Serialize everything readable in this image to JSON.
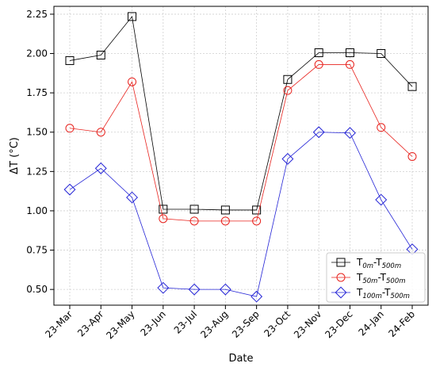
{
  "chart_data": {
    "type": "line",
    "title": "",
    "xlabel": "Date",
    "ylabel": "ΔT (°C)",
    "categories": [
      "23-Mar",
      "23-Apr",
      "23-May",
      "23-Jun",
      "23-Jul",
      "23-Aug",
      "23-Sep",
      "23-Oct",
      "23-Nov",
      "23-Dec",
      "24-Jan",
      "24-Feb"
    ],
    "ylim": [
      0.4,
      2.3
    ],
    "yticks": [
      "0.50",
      "0.75",
      "1.00",
      "1.25",
      "1.50",
      "1.75",
      "2.00",
      "2.25"
    ],
    "grid": true,
    "legend_position": "bottom-right",
    "series": [
      {
        "name": "T0m-T500m",
        "label_main": "T",
        "label_sub1": "0m",
        "label_mid": "-T",
        "label_sub2": "500m",
        "color": "#000000",
        "marker": "square",
        "values": [
          1.955,
          1.99,
          2.235,
          1.01,
          1.01,
          1.005,
          1.005,
          1.835,
          2.005,
          2.005,
          2.0,
          1.79
        ]
      },
      {
        "name": "T50m-T500m",
        "label_main": "T",
        "label_sub1": "50m",
        "label_mid": "-T",
        "label_sub2": "500m",
        "color": "#e8231e",
        "marker": "circle",
        "values": [
          1.525,
          1.5,
          1.82,
          0.95,
          0.935,
          0.935,
          0.935,
          1.765,
          1.93,
          1.93,
          1.53,
          1.345
        ]
      },
      {
        "name": "T100m-T500m",
        "label_main": "T",
        "label_sub1": "100m",
        "label_mid": "-T",
        "label_sub2": "500m",
        "color": "#2323d6",
        "marker": "diamond",
        "values": [
          1.135,
          1.27,
          1.085,
          0.51,
          0.5,
          0.5,
          0.455,
          1.33,
          1.5,
          1.495,
          1.07,
          0.755
        ]
      }
    ]
  }
}
